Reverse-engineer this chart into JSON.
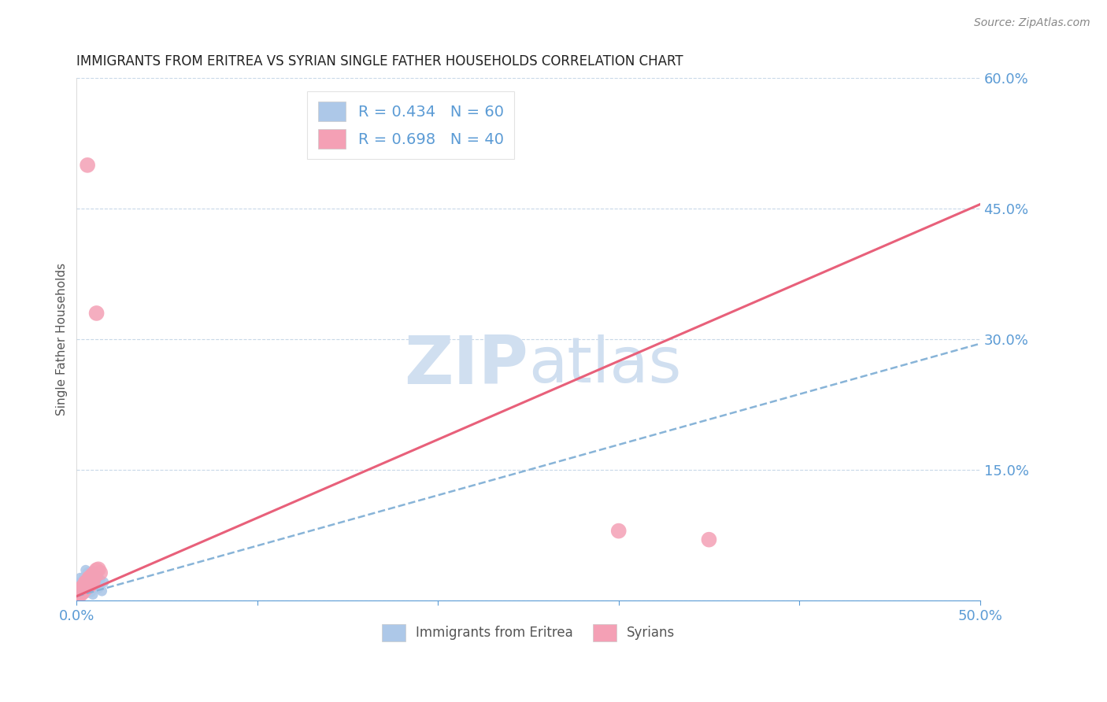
{
  "title": "IMMIGRANTS FROM ERITREA VS SYRIAN SINGLE FATHER HOUSEHOLDS CORRELATION CHART",
  "source": "Source: ZipAtlas.com",
  "ylabel": "Single Father Households",
  "xlim": [
    0,
    0.5
  ],
  "ylim": [
    0,
    0.6
  ],
  "xticks": [
    0.0,
    0.1,
    0.2,
    0.3,
    0.4,
    0.5
  ],
  "yticks": [
    0.0,
    0.15,
    0.3,
    0.45,
    0.6
  ],
  "xtick_labels": [
    "0.0%",
    "",
    "",
    "",
    "",
    "50.0%"
  ],
  "ytick_labels": [
    "",
    "15.0%",
    "30.0%",
    "45.0%",
    "60.0%"
  ],
  "blue_R": 0.434,
  "blue_N": 60,
  "pink_R": 0.698,
  "pink_N": 40,
  "blue_color": "#adc8e8",
  "pink_color": "#f4a0b5",
  "blue_line_color": "#88b4d8",
  "pink_line_color": "#e8607a",
  "title_color": "#222222",
  "axis_color": "#5b9bd5",
  "legend_R_color": "#5b9bd5",
  "watermark_color": "#d0dff0",
  "background_color": "#ffffff",
  "grid_color": "#c8d8e8",
  "blue_scatter_x": [
    0.001,
    0.002,
    0.003,
    0.001,
    0.004,
    0.002,
    0.003,
    0.005,
    0.004,
    0.006,
    0.003,
    0.005,
    0.002,
    0.007,
    0.004,
    0.006,
    0.003,
    0.008,
    0.005,
    0.007,
    0.001,
    0.004,
    0.006,
    0.003,
    0.008,
    0.005,
    0.007,
    0.002,
    0.009,
    0.006,
    0.004,
    0.007,
    0.003,
    0.01,
    0.005,
    0.008,
    0.002,
    0.011,
    0.006,
    0.009,
    0.001,
    0.005,
    0.008,
    0.003,
    0.012,
    0.007,
    0.01,
    0.004,
    0.013,
    0.006,
    0.009,
    0.002,
    0.014,
    0.007,
    0.011,
    0.004,
    0.015,
    0.008,
    0.012,
    0.005
  ],
  "blue_scatter_y": [
    0.005,
    0.01,
    0.008,
    0.015,
    0.012,
    0.02,
    0.018,
    0.025,
    0.022,
    0.03,
    0.007,
    0.013,
    0.01,
    0.018,
    0.015,
    0.023,
    0.02,
    0.028,
    0.025,
    0.033,
    0.006,
    0.011,
    0.009,
    0.016,
    0.013,
    0.021,
    0.019,
    0.026,
    0.023,
    0.031,
    0.008,
    0.014,
    0.011,
    0.019,
    0.016,
    0.024,
    0.021,
    0.029,
    0.026,
    0.034,
    0.005,
    0.012,
    0.01,
    0.017,
    0.014,
    0.022,
    0.02,
    0.027,
    0.024,
    0.032,
    0.007,
    0.013,
    0.011,
    0.018,
    0.015,
    0.023,
    0.021,
    0.028,
    0.025,
    0.035
  ],
  "pink_scatter_x": [
    0.001,
    0.003,
    0.002,
    0.005,
    0.004,
    0.007,
    0.006,
    0.009,
    0.008,
    0.011,
    0.002,
    0.004,
    0.003,
    0.006,
    0.005,
    0.008,
    0.007,
    0.01,
    0.009,
    0.013,
    0.001,
    0.003,
    0.002,
    0.006,
    0.004,
    0.008,
    0.005,
    0.01,
    0.007,
    0.012,
    0.002,
    0.004,
    0.003,
    0.007,
    0.005,
    0.009,
    0.006,
    0.011,
    0.35,
    0.3
  ],
  "pink_scatter_y": [
    0.01,
    0.015,
    0.012,
    0.02,
    0.017,
    0.025,
    0.022,
    0.03,
    0.027,
    0.035,
    0.008,
    0.013,
    0.01,
    0.018,
    0.015,
    0.023,
    0.02,
    0.028,
    0.025,
    0.032,
    0.009,
    0.014,
    0.011,
    0.019,
    0.016,
    0.024,
    0.021,
    0.029,
    0.026,
    0.036,
    0.007,
    0.012,
    0.009,
    0.017,
    0.014,
    0.022,
    0.5,
    0.33,
    0.07,
    0.08
  ],
  "blue_line_x": [
    0.0,
    0.5
  ],
  "blue_line_y": [
    0.005,
    0.295
  ],
  "pink_line_x": [
    0.0,
    0.5
  ],
  "pink_line_y": [
    0.005,
    0.455
  ]
}
